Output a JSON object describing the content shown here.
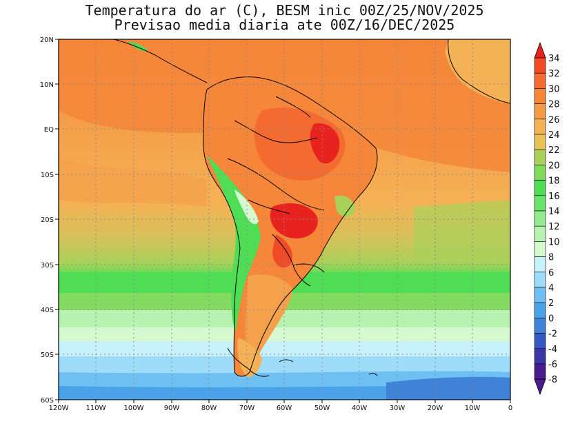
{
  "title": {
    "line1": "Temperatura do ar (C), BESM inic 00Z/25/NOV/2025",
    "line2": "Previsao media diaria ate 00Z/16/DEC/2025"
  },
  "map": {
    "region": "South America",
    "lat_labels": [
      "20N",
      "10N",
      "EQ",
      "10S",
      "20S",
      "30S",
      "40S",
      "50S",
      "60S"
    ],
    "lon_labels": [
      "120W",
      "110W",
      "100W",
      "90W",
      "80W",
      "70W",
      "60W",
      "50W",
      "40W",
      "30W",
      "20W",
      "10W",
      "0"
    ]
  },
  "colorbar": {
    "labels": [
      "34",
      "32",
      "30",
      "28",
      "26",
      "24",
      "22",
      "20",
      "18",
      "16",
      "14",
      "12",
      "10",
      "8",
      "6",
      "4",
      "2",
      "0",
      "-2",
      "-4",
      "-6",
      "-8"
    ],
    "colors": [
      "#e8231f",
      "#f04a26",
      "#f36b30",
      "#f5863a",
      "#f59b47",
      "#f5b155",
      "#e8c255",
      "#a9d15a",
      "#7fd95a",
      "#4fdd55",
      "#69e36c",
      "#93eb8f",
      "#b7f2b0",
      "#d6f9cf",
      "#c7f1fb",
      "#9fdcf9",
      "#6ec0f2",
      "#4aa3e8",
      "#3f82d8",
      "#3558c4",
      "#3b36a8",
      "#4a1a8f"
    ]
  }
}
